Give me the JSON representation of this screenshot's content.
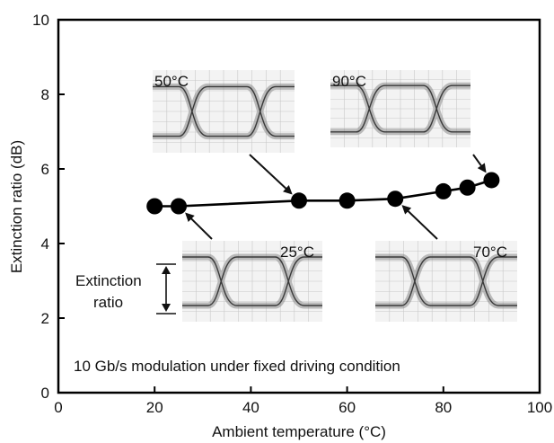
{
  "chart_data": {
    "type": "scatter",
    "title": "",
    "xlabel": "Ambient temperature (°C)",
    "ylabel": "Extinction ratio (dB)",
    "xlim": [
      0,
      100
    ],
    "ylim": [
      0,
      10
    ],
    "x_ticks": [
      "0",
      "20",
      "40",
      "60",
      "80",
      "100"
    ],
    "y_ticks": [
      "0",
      "2",
      "4",
      "6",
      "8",
      "10"
    ],
    "grid": false,
    "legend": "none",
    "series": [
      {
        "x": [
          20,
          25,
          50,
          60,
          70,
          80,
          85,
          90
        ],
        "y": [
          5.0,
          5.0,
          5.15,
          5.15,
          5.2,
          5.4,
          5.5,
          5.7
        ],
        "style": "line-with-filled-circles",
        "color": "#000000"
      }
    ],
    "annotations": {
      "condition": "10 Gb/s modulation under fixed driving condition",
      "extinction_label_line1": "Extinction",
      "extinction_label_line2": "ratio",
      "eye_diagrams": [
        {
          "label": "50°C",
          "points_to_x": 50,
          "points_to_y": 5.15
        },
        {
          "label": "90°C",
          "points_to_x": 90,
          "points_to_y": 5.7
        },
        {
          "label": "25°C",
          "points_to_x": 25,
          "points_to_y": 5.0
        },
        {
          "label": "70°C",
          "points_to_x": 70,
          "points_to_y": 5.2
        }
      ]
    }
  }
}
